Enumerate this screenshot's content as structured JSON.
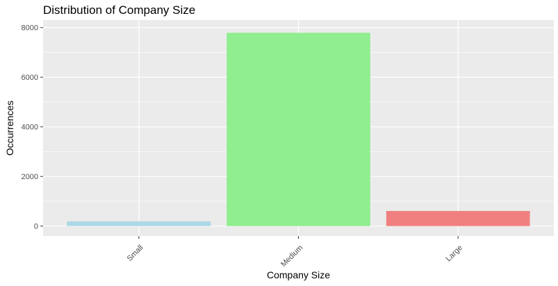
{
  "chart_data": {
    "type": "bar",
    "title": "Distribution of Company Size",
    "xlabel": "Company Size",
    "ylabel": "Occurrences",
    "categories": [
      "Small",
      "Medium",
      "Large"
    ],
    "values": [
      190,
      7790,
      610
    ],
    "colors": [
      "#ADD8E6",
      "#90EE90",
      "#F08080"
    ],
    "ylim": [
      -400,
      8300
    ],
    "yticks": [
      0,
      2000,
      4000,
      6000,
      8000
    ],
    "ytick_labels": [
      "0",
      "2000",
      "4000",
      "6000",
      "8000"
    ],
    "grid": true,
    "panel_background": "#EBEBEB",
    "x_tick_rotation": 45
  }
}
